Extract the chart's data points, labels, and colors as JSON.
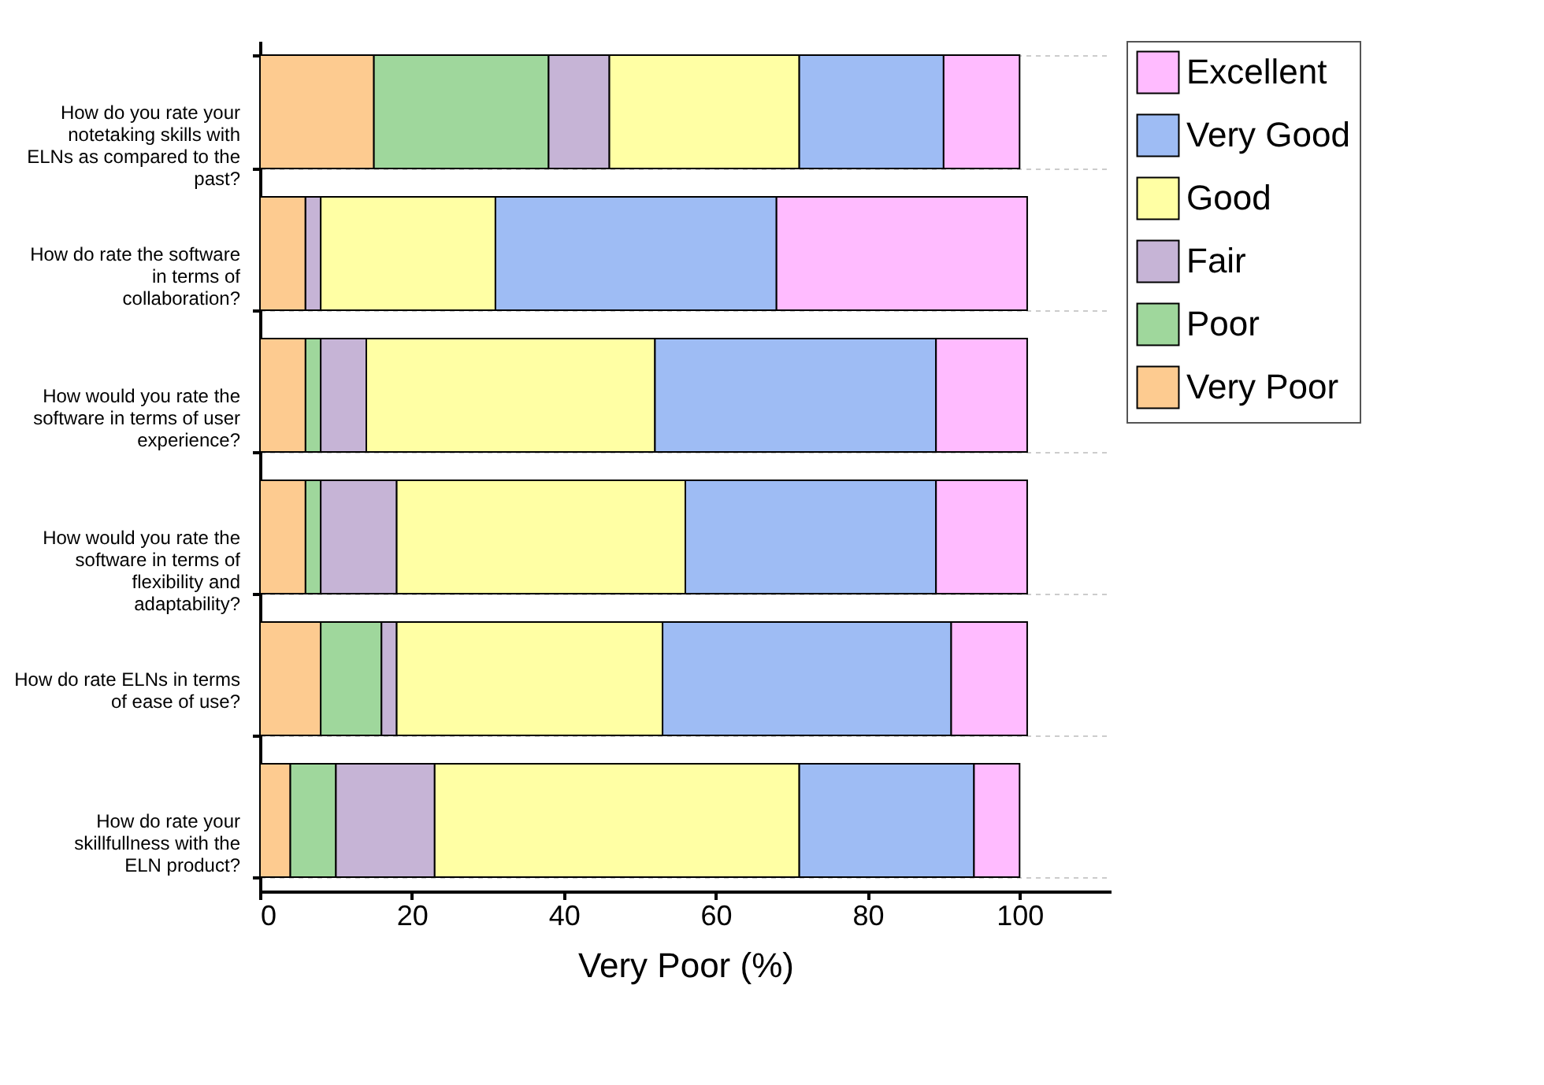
{
  "chart_data": {
    "type": "bar",
    "orientation": "horizontal",
    "stacked": true,
    "xlabel": "Very Poor (%)",
    "categories": [
      "How do you rate your notetaking skills with ELNs as compared to the past?",
      "How do rate the software in terms of collaboration?",
      "How would you rate the software in terms of user experience?",
      "How would you rate the software in terms of flexibility and adaptability?",
      "How do rate ELNs in terms of ease of use?",
      "How do rate your skillfullness with the ELN product?"
    ],
    "series": [
      {
        "name": "Very Poor",
        "color": "#fdcb90",
        "values": [
          15,
          6,
          6,
          6,
          8,
          4
        ]
      },
      {
        "name": "Poor",
        "color": "#9fd79c",
        "values": [
          23,
          0,
          2,
          2,
          8,
          6
        ]
      },
      {
        "name": "Fair",
        "color": "#c6b4d6",
        "values": [
          8,
          2,
          6,
          10,
          2,
          13
        ]
      },
      {
        "name": "Good",
        "color": "#ffffa4",
        "values": [
          25,
          23,
          38,
          38,
          35,
          48
        ]
      },
      {
        "name": "Very Good",
        "color": "#9ebcf4",
        "values": [
          19,
          37,
          37,
          33,
          38,
          23
        ]
      },
      {
        "name": "Excellent",
        "color": "#ffbbff",
        "values": [
          10,
          33,
          12,
          12,
          10,
          6
        ]
      }
    ],
    "xlim": [
      0,
      112
    ],
    "xticks": [
      0,
      20,
      40,
      60,
      80,
      100
    ],
    "grid": "y",
    "legend": "top right"
  }
}
